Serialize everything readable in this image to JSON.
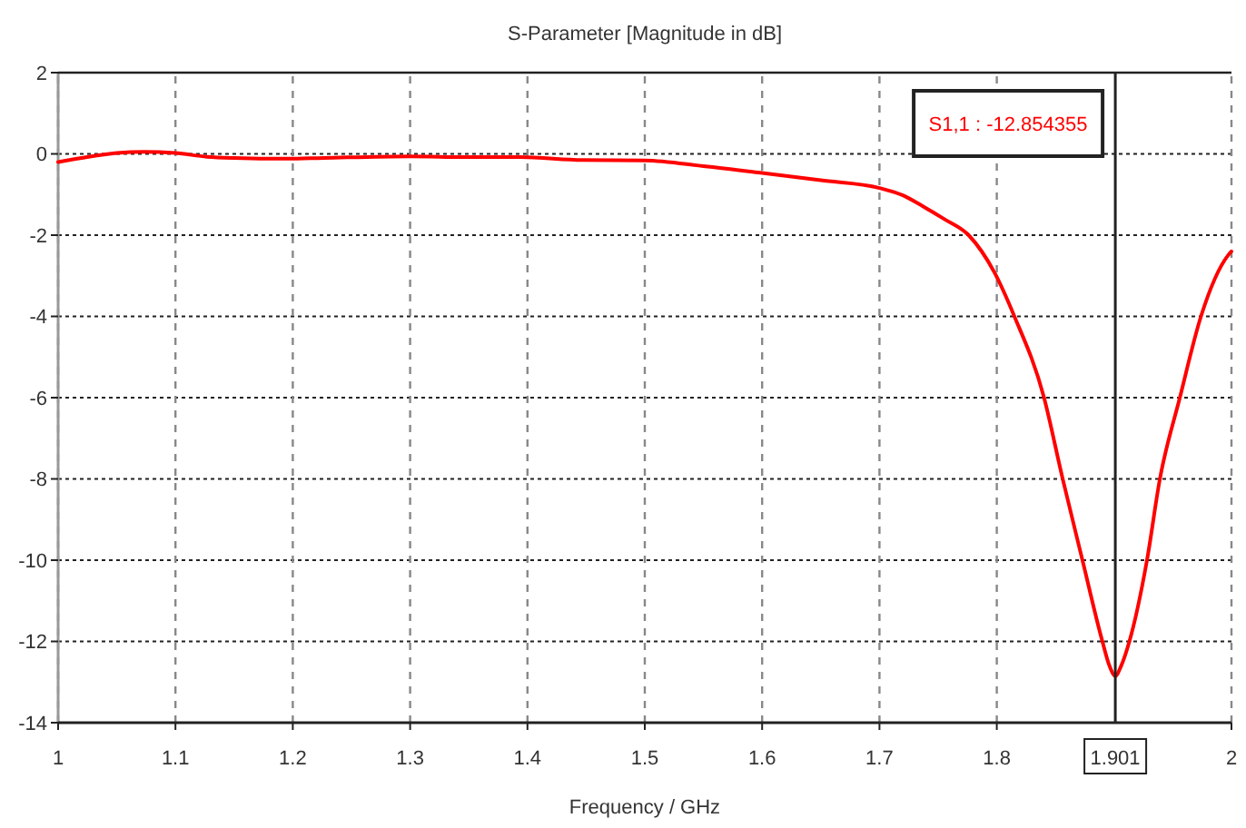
{
  "chart_data": {
    "type": "line",
    "title": "S-Parameter [Magnitude in dB]",
    "xlabel": "Frequency / GHz",
    "x": [
      1.0,
      1.02,
      1.05,
      1.073,
      1.1,
      1.127,
      1.15,
      1.195,
      1.226,
      1.3,
      1.35,
      1.394,
      1.447,
      1.5,
      1.55,
      1.6,
      1.65,
      1.7,
      1.72,
      1.737,
      1.755,
      1.776,
      1.798,
      1.815,
      1.84,
      1.856,
      1.873,
      1.89,
      1.896,
      1.901,
      1.906,
      1.913,
      1.928,
      1.939,
      1.956,
      1.974,
      1.997,
      2.0
    ],
    "series": [
      {
        "color": "#ff0000",
        "values": [
          -0.2,
          -0.1,
          0.02,
          0.05,
          0.02,
          -0.07,
          -0.1,
          -0.12,
          -0.1,
          -0.06,
          -0.08,
          -0.08,
          -0.15,
          -0.16,
          -0.3,
          -0.47,
          -0.65,
          -0.84,
          -1.02,
          -1.29,
          -1.6,
          -2.0,
          -2.92,
          -4.0,
          -5.97,
          -7.98,
          -10.0,
          -12.0,
          -12.6,
          -12.85,
          -12.6,
          -12.0,
          -10.0,
          -8.0,
          -6.0,
          -4.0,
          -2.5,
          -2.4
        ]
      }
    ],
    "xlim": [
      1,
      2
    ],
    "ylim": [
      -14,
      2
    ],
    "xticks": [
      1,
      1.1,
      1.2,
      1.3,
      1.4,
      1.5,
      1.6,
      1.7,
      1.8,
      2
    ],
    "yticks": [
      -14,
      -12,
      -10,
      -8,
      -6,
      -4,
      -2,
      0,
      2
    ],
    "grid": true,
    "ref_lines": [
      {
        "axis": "x",
        "value": 1.901,
        "label": "1.901"
      }
    ],
    "annotations": [
      "S1,1 : -12.854355"
    ]
  }
}
